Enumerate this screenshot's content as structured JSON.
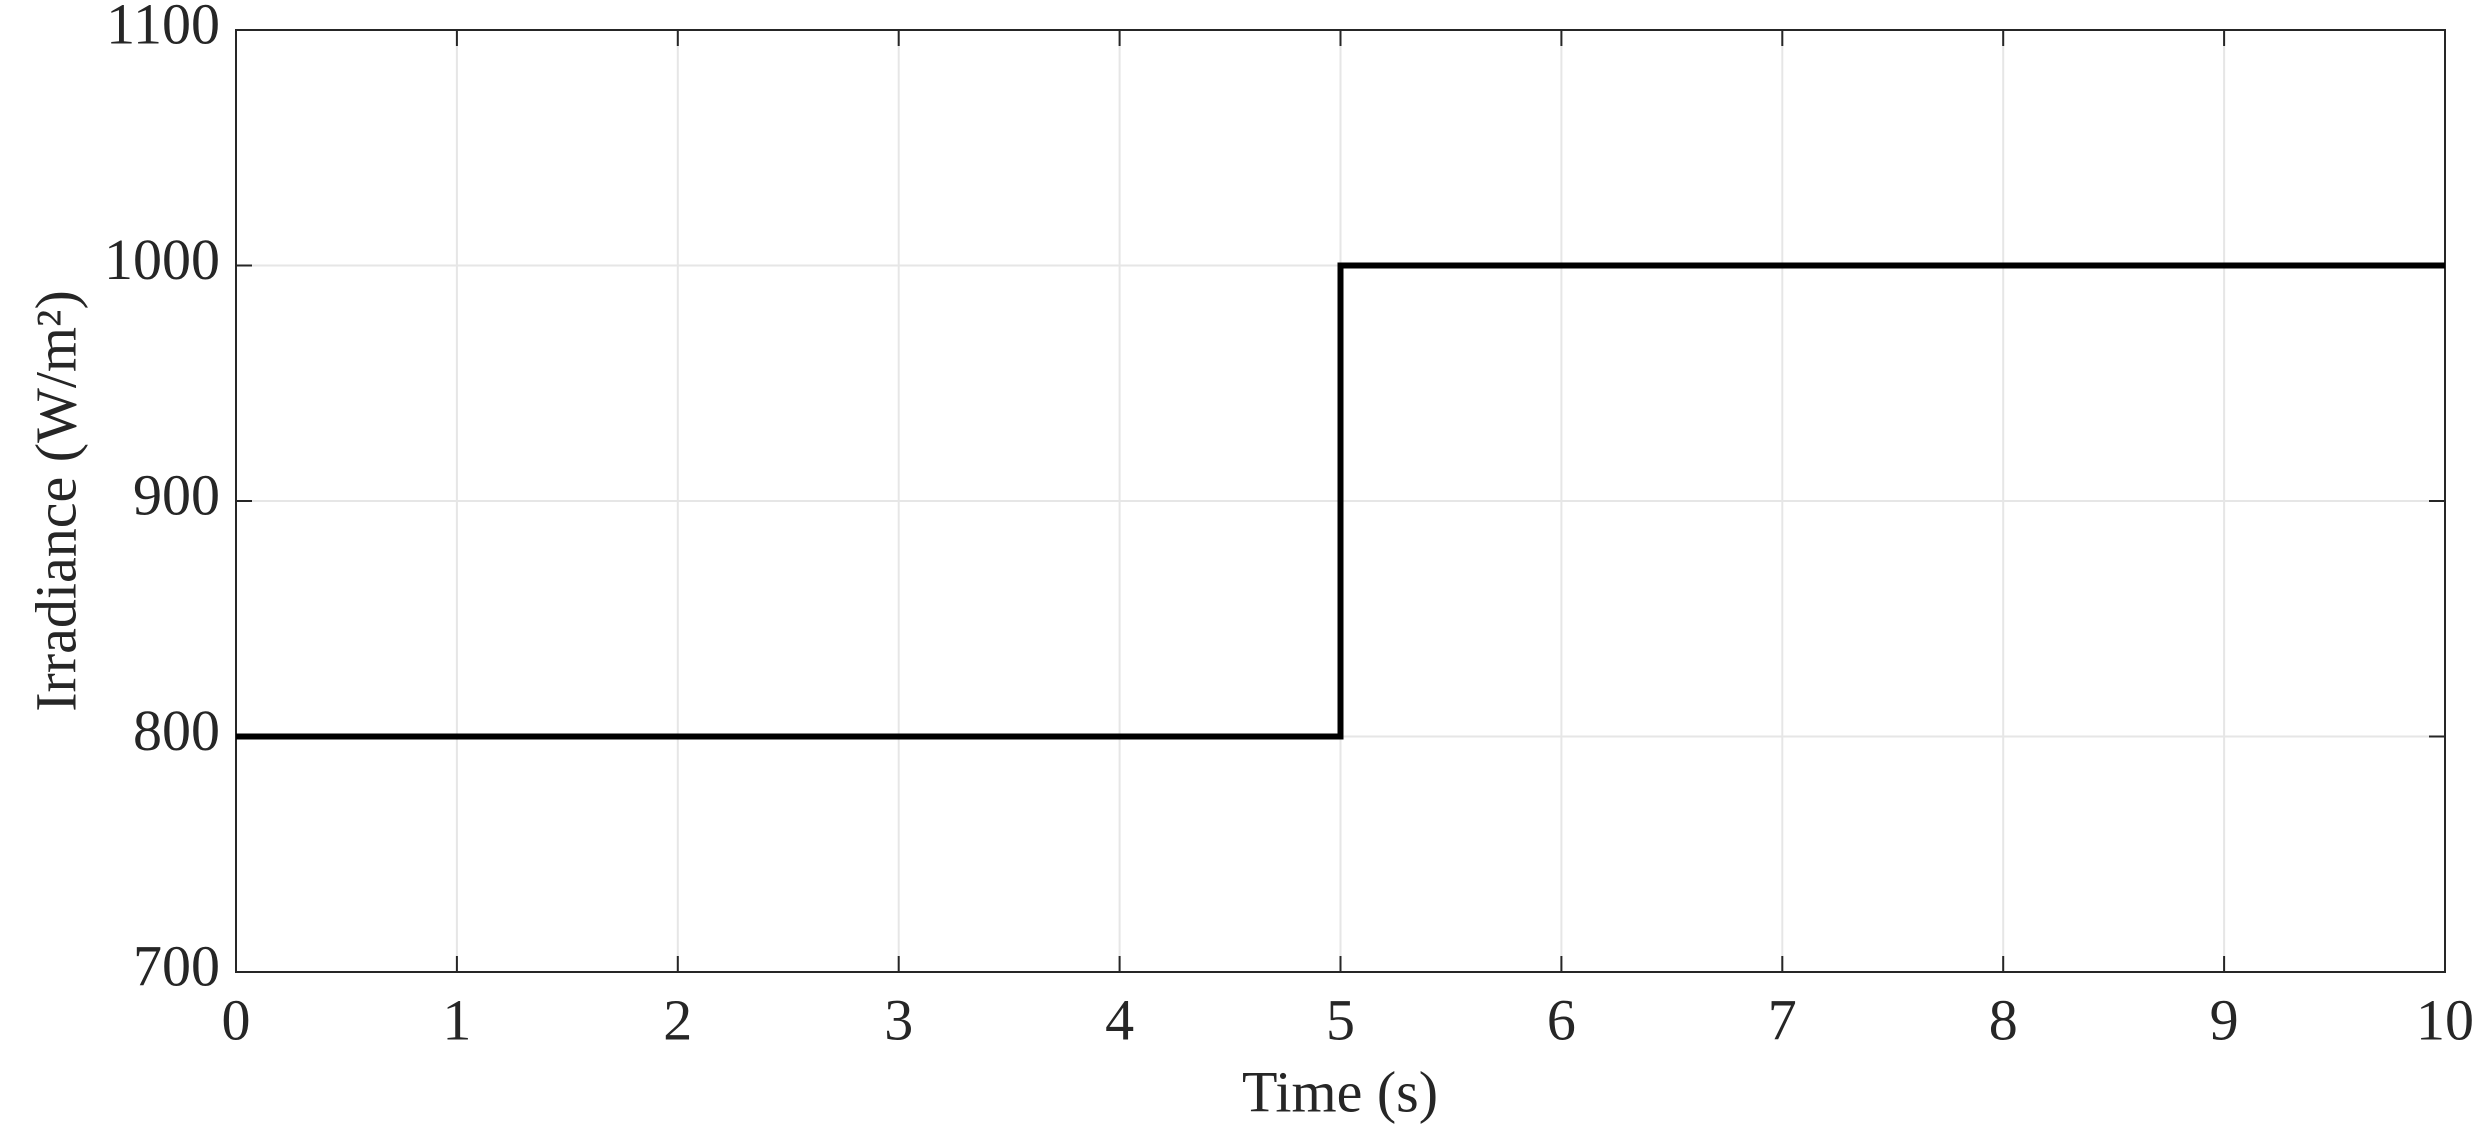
{
  "chart_data": {
    "type": "line",
    "xlabel": "Time (s)",
    "ylabel": "Irradiance (W/m²)",
    "x": [
      0,
      5,
      5,
      10
    ],
    "series": [
      {
        "color": "#000000",
        "values": [
          800,
          800,
          1000,
          1000
        ]
      }
    ],
    "xlim": [
      0,
      10
    ],
    "xticks": [
      0,
      1,
      2,
      3,
      4,
      5,
      6,
      7,
      8,
      9,
      10
    ],
    "ylim": [
      700,
      1100
    ],
    "yticks": [
      700,
      800,
      900,
      1000,
      1100
    ],
    "grid": true
  }
}
